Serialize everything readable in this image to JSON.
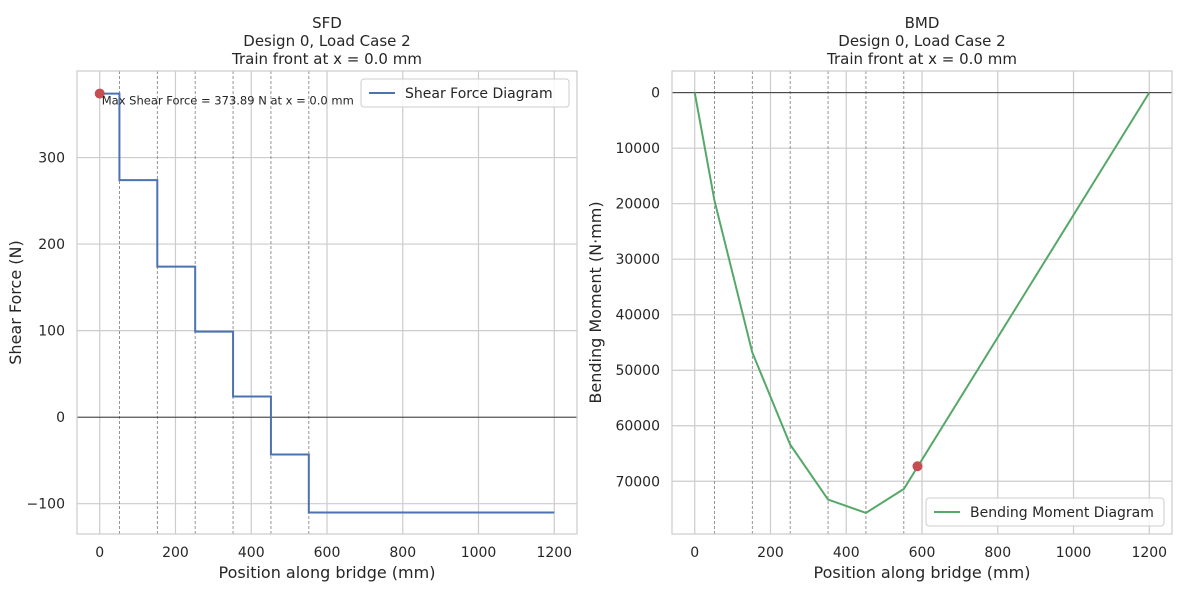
{
  "chart_data": [
    {
      "type": "line",
      "title_lines": [
        "SFD",
        "Design 0, Load Case 2",
        "Train front at x = 0.0 mm"
      ],
      "xlabel": "Position along bridge (mm)",
      "ylabel": "Shear Force (N)",
      "xlim": [
        -60,
        1260
      ],
      "ylim": [
        -135,
        400
      ],
      "y_inverted": false,
      "x_ticks": [
        0,
        200,
        400,
        600,
        800,
        1000,
        1200
      ],
      "y_ticks": [
        -100,
        0,
        100,
        200,
        300
      ],
      "grid": true,
      "legend_position": "top-right",
      "load_positions": [
        52,
        152,
        252,
        352,
        452,
        552
      ],
      "series": [
        {
          "name": "Shear Force Diagram",
          "color": "#4c72b0",
          "step": true,
          "x": [
            0,
            52,
            52,
            152,
            152,
            252,
            252,
            352,
            352,
            452,
            452,
            552,
            552,
            1200
          ],
          "y": [
            373.89,
            373.89,
            273.89,
            273.89,
            173.89,
            173.89,
            98.89,
            98.89,
            23.89,
            23.89,
            -43.11,
            -43.11,
            -110.11,
            -110.11
          ]
        }
      ],
      "marker": {
        "x": 0,
        "y": 373.89,
        "color": "#c44e52"
      },
      "annotation": "Max Shear Force = 373.89 N at x = 0.0 mm"
    },
    {
      "type": "line",
      "title_lines": [
        "BMD",
        "Design 0, Load Case 2",
        "Train front at x = 0.0 mm"
      ],
      "xlabel": "Position along bridge (mm)",
      "ylabel": "Bending Moment (N·mm)",
      "xlim": [
        -60,
        1260
      ],
      "ylim": [
        79500,
        -3900
      ],
      "y_inverted": true,
      "x_ticks": [
        0,
        200,
        400,
        600,
        800,
        1000,
        1200
      ],
      "y_ticks": [
        0,
        10000,
        20000,
        30000,
        40000,
        50000,
        60000,
        70000
      ],
      "grid": true,
      "legend_position": "bottom-right",
      "load_positions": [
        52,
        152,
        252,
        352,
        452,
        552
      ],
      "series": [
        {
          "name": "Bending Moment Diagram",
          "color": "#55a868",
          "step": false,
          "x": [
            0,
            52,
            152,
            252,
            352,
            452,
            552,
            1200
          ],
          "y": [
            0,
            19400,
            46800,
            63400,
            73300,
            75700,
            71400,
            0
          ]
        }
      ],
      "marker": {
        "x": 588,
        "y": 67300,
        "color": "#c44e52"
      }
    }
  ]
}
